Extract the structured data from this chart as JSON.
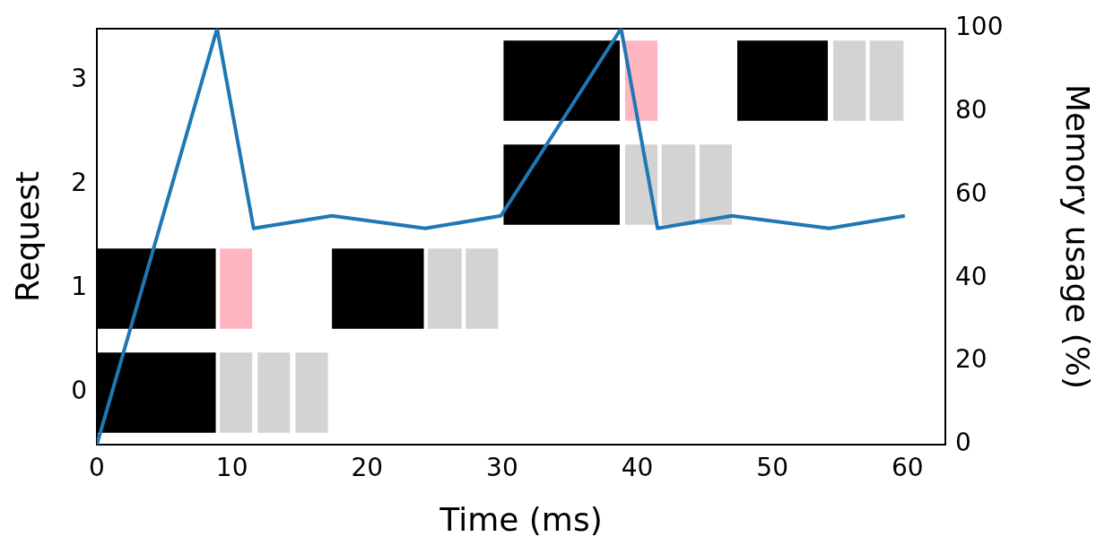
{
  "chart_data": [
    {
      "type": "bar",
      "orientation": "horizontal",
      "xlabel": "Time (ms)",
      "ylabel": "Request",
      "categories": [
        "3",
        "2",
        "1",
        "0"
      ],
      "xlim": [
        0,
        62.8
      ],
      "xticks": [
        0,
        10,
        20,
        30,
        40,
        50,
        60
      ],
      "series": [
        {
          "color": "#000000",
          "base": [
            30.1,
            30.1,
            0,
            0
          ],
          "values": [
            8.6,
            8.6,
            8.8,
            8.8
          ]
        },
        {
          "color": "#000000",
          "base": [
            47.4,
            null,
            17.4,
            null
          ],
          "values": [
            6.7,
            null,
            6.8,
            null
          ]
        },
        {
          "color": "#ffb6c1",
          "base": [
            39.1,
            null,
            9.1,
            null
          ],
          "values": [
            2.4,
            null,
            2.4,
            null
          ]
        },
        {
          "color": "#d3d3d3",
          "base": [
            54.5,
            39.1,
            24.5,
            9.1
          ],
          "values": [
            2.4,
            2.4,
            2.5,
            2.4
          ]
        },
        {
          "color": "#d3d3d3",
          "base": [
            57.2,
            41.8,
            27.3,
            11.9
          ],
          "values": [
            2.5,
            2.5,
            2.4,
            2.4
          ]
        },
        {
          "color": "#d3d3d3",
          "base": [
            null,
            44.6,
            null,
            14.7
          ],
          "values": [
            null,
            2.4,
            null,
            2.4
          ]
        }
      ]
    },
    {
      "type": "line",
      "y2label": "Memory usage (%)",
      "xlim": [
        0,
        62.8
      ],
      "xticks": [
        0,
        10,
        20,
        30,
        40,
        50,
        60
      ],
      "tick_labels": "y",
      "y2lim": [
        0,
        100
      ],
      "y2ticks": [
        0,
        20,
        40,
        60,
        80,
        100
      ],
      "series": [
        {
          "axis": "y2",
          "color": "#1f77b4",
          "x": [
            0,
            8.9,
            11.6,
            17.4,
            24.3,
            29.9,
            38.8,
            41.5,
            47.0,
            54.2,
            59.8
          ],
          "values": [
            0,
            100,
            52,
            55,
            52,
            55,
            100,
            52,
            55,
            52,
            55
          ]
        }
      ]
    }
  ]
}
